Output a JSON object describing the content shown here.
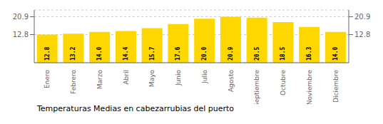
{
  "chart_data": {
    "type": "bar",
    "title": "Temperaturas Medias en cabezarrubias del puerto",
    "categories": [
      "Enero",
      "Febrero",
      "Marzo",
      "Abril",
      "Mayo",
      "Junio",
      "Julio",
      "Agosto",
      "Septiembre",
      "Octubre",
      "Noviembre",
      "Diciembre"
    ],
    "values": [
      12.8,
      13.2,
      14.0,
      14.4,
      15.7,
      17.6,
      20.0,
      20.9,
      20.5,
      18.5,
      16.3,
      14.0
    ],
    "value_labels": [
      "12.8",
      "13.2",
      "14.0",
      "14.4",
      "15.7",
      "17.6",
      "20.0",
      "20.9",
      "20.5",
      "18.5",
      "16.3",
      "14.0"
    ],
    "data_labels": true,
    "color": "#FFD700",
    "ylim": [
      0,
      24.0
    ],
    "yticks": [
      12.8,
      20.9
    ],
    "y2lim": [
      0,
      24.0
    ],
    "y2ticks": [
      12.8,
      20.9
    ],
    "grid": true
  }
}
